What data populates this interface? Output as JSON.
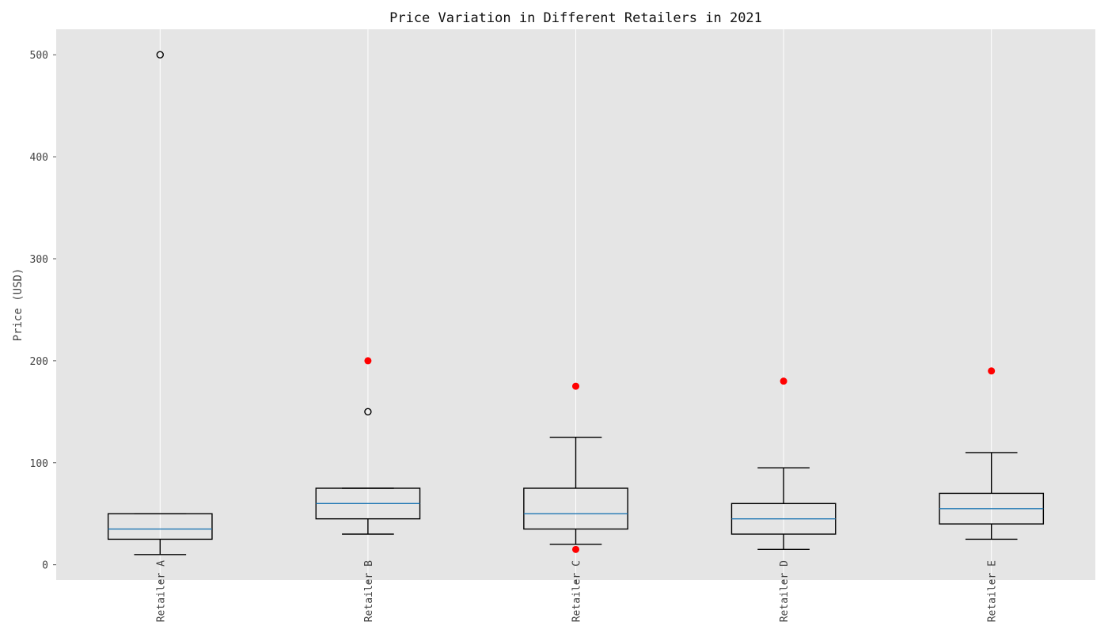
{
  "chart_data": {
    "type": "box",
    "title": "Price Variation in Different Retailers in 2021",
    "xlabel": "",
    "ylabel": "Price (USD)",
    "categories": [
      "Retailer A",
      "Retailer B",
      "Retailer C",
      "Retailer D",
      "Retailer E"
    ],
    "y_ticks": [
      0,
      100,
      200,
      300,
      400,
      500
    ],
    "ylim": [
      -15,
      525
    ],
    "boxes": [
      {
        "category": "Retailer A",
        "whisker_low": 10,
        "q1": 25,
        "median": 35,
        "q3": 50,
        "whisker_high": 50,
        "outliers": [
          500
        ],
        "highlighted_points": []
      },
      {
        "category": "Retailer B",
        "whisker_low": 30,
        "q1": 45,
        "median": 60,
        "q3": 75,
        "whisker_high": 75,
        "outliers": [
          150
        ],
        "highlighted_points": [
          200
        ]
      },
      {
        "category": "Retailer C",
        "whisker_low": 20,
        "q1": 35,
        "median": 50,
        "q3": 75,
        "whisker_high": 125,
        "outliers": [],
        "highlighted_points": [
          175,
          15
        ]
      },
      {
        "category": "Retailer D",
        "whisker_low": 15,
        "q1": 30,
        "median": 45,
        "q3": 60,
        "whisker_high": 95,
        "outliers": [],
        "highlighted_points": [
          180
        ]
      },
      {
        "category": "Retailer E",
        "whisker_low": 25,
        "q1": 40,
        "median": 55,
        "q3": 70,
        "whisker_high": 110,
        "outliers": [],
        "highlighted_points": [
          190
        ]
      }
    ],
    "grid": true,
    "colors": {
      "plot_background": "#e5e5e5",
      "grid": "#ffffff",
      "box": "#000000",
      "median": "#1f77b4",
      "highlighted_point": "#ff0000",
      "outlier": "#000000"
    }
  }
}
